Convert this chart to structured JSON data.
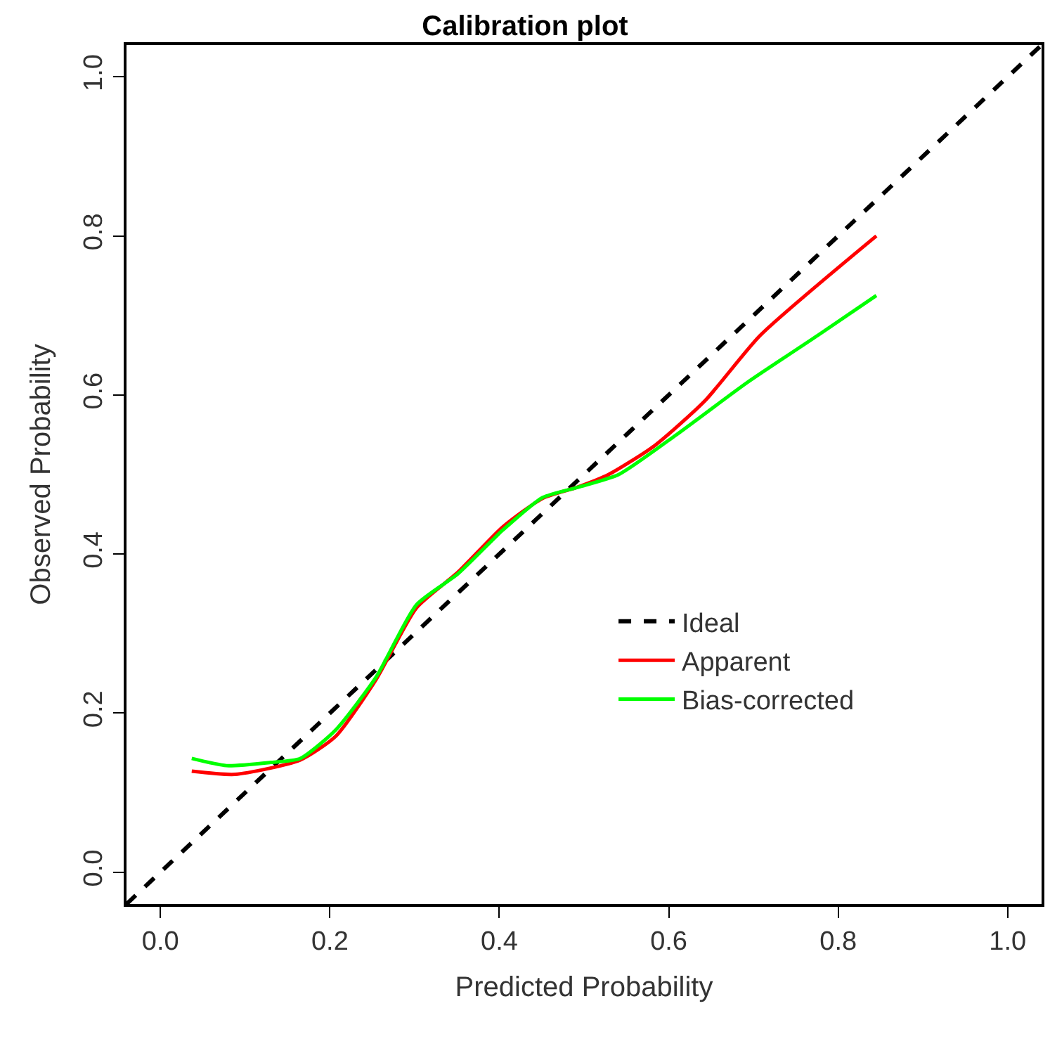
{
  "chart_data": {
    "type": "line",
    "title": "Calibration plot",
    "xlabel": "Predicted Probability",
    "ylabel": "Observed Probability",
    "xlim": [
      -0.04,
      1.04
    ],
    "ylim": [
      -0.04,
      1.04
    ],
    "xticks": [
      {
        "value": 0,
        "label": "0.0"
      },
      0.2,
      0.4,
      0.6,
      0.8,
      {
        "value": 1,
        "label": "1.0"
      }
    ],
    "yticks": [
      {
        "value": 0,
        "label": "0.0"
      },
      0.2,
      0.4,
      0.6,
      0.8,
      {
        "value": 1,
        "label": "1.0"
      }
    ],
    "legend": "bottom right",
    "marker": "none",
    "series": [
      {
        "name": "Ideal",
        "color": "#000000",
        "line_style": "dashed",
        "x": [
          -0.04,
          1.04
        ],
        "values": [
          -0.04,
          1.04
        ]
      },
      {
        "name": "Apparent",
        "color": "#ff0000",
        "line_style": "solid",
        "x": [
          0.037,
          0.088,
          0.165,
          0.207,
          0.255,
          0.302,
          0.351,
          0.404,
          0.451,
          0.492,
          0.529,
          0.583,
          0.643,
          0.708,
          0.845
        ],
        "values": [
          0.127,
          0.123,
          0.141,
          0.171,
          0.243,
          0.332,
          0.377,
          0.434,
          0.47,
          0.484,
          0.5,
          0.536,
          0.593,
          0.675,
          0.8
        ]
      },
      {
        "name": "Bias-corrected",
        "color": "#00ff00",
        "line_style": "solid",
        "x": [
          0.037,
          0.078,
          0.13,
          0.165,
          0.207,
          0.255,
          0.302,
          0.351,
          0.404,
          0.451,
          0.493,
          0.541,
          0.609,
          0.693,
          0.776,
          0.845
        ],
        "values": [
          0.143,
          0.134,
          0.138,
          0.143,
          0.179,
          0.246,
          0.336,
          0.375,
          0.43,
          0.471,
          0.484,
          0.5,
          0.55,
          0.616,
          0.675,
          0.725
        ]
      }
    ]
  }
}
